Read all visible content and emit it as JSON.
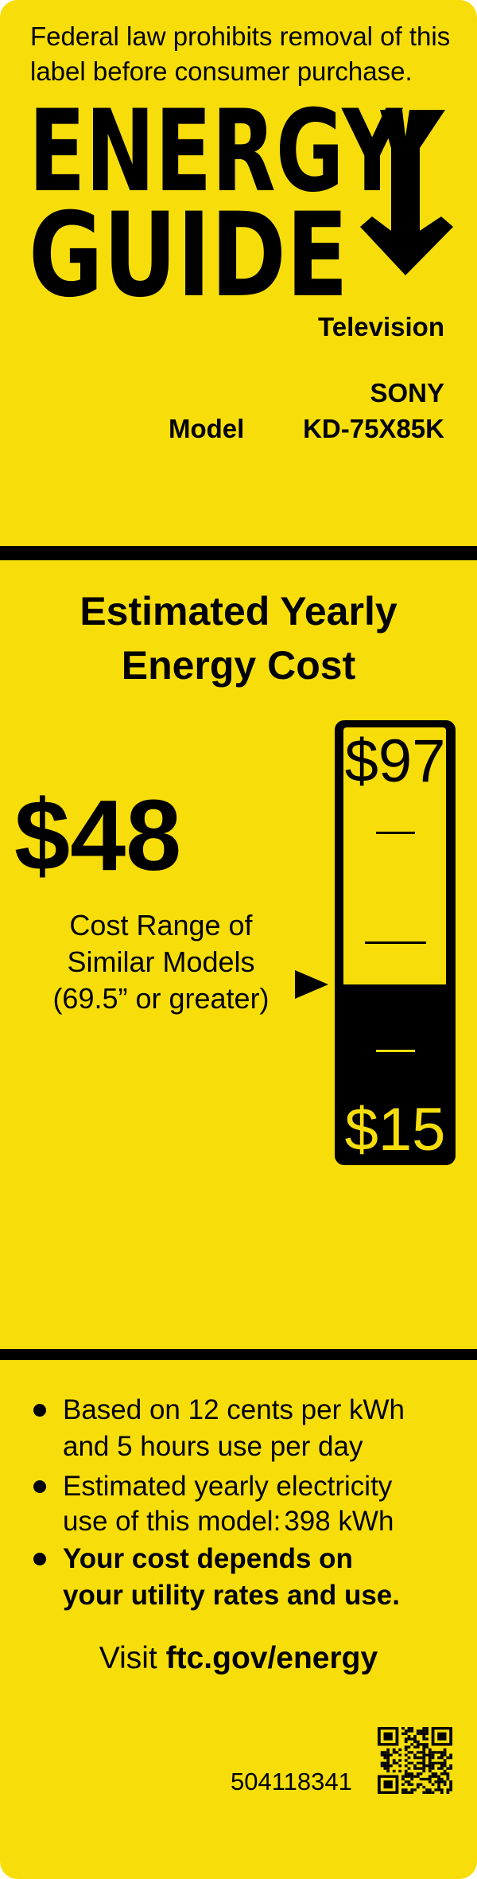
{
  "header": {
    "legal_line1": "Federal law prohibits removal of this",
    "legal_line2": "label before consumer purchase.",
    "logo_line1": "ENERGY",
    "logo_line2": "GUIDE",
    "logo_icon": "down-arrow-icon",
    "product_type": "Television",
    "brand": "SONY",
    "model_label": "Model",
    "model_number": "KD-75X85K"
  },
  "cost": {
    "heading_line1": "Estimated Yearly",
    "heading_line2": "Energy Cost",
    "value": "$48",
    "range_line1": "Cost Range of",
    "range_line2": "Similar Models",
    "range_line3": "(69.5” or greater)",
    "scale_max_label": "$97",
    "scale_min_label": "$15",
    "scale_min": 15,
    "scale_max": 97,
    "this_model": 48
  },
  "notes": {
    "bullet1_line1": "Based on 12 cents per kWh",
    "bullet1_line2": "and 5 hours use per day",
    "bullet2_line1": "Estimated yearly electricity",
    "bullet2_line2_prefix": "use of this model:",
    "bullet2_line2_value": "398 kWh",
    "bullet3_line1": "Your cost depends on",
    "bullet3_line2": "your utility rates and use.",
    "visit_prefix": "Visit",
    "visit_link": "ftc.gov/energy",
    "serial": "504118341",
    "qr_icon": "qr-code-icon"
  },
  "colors": {
    "label_yellow": "#F7DE0B",
    "ink": "#000000"
  }
}
